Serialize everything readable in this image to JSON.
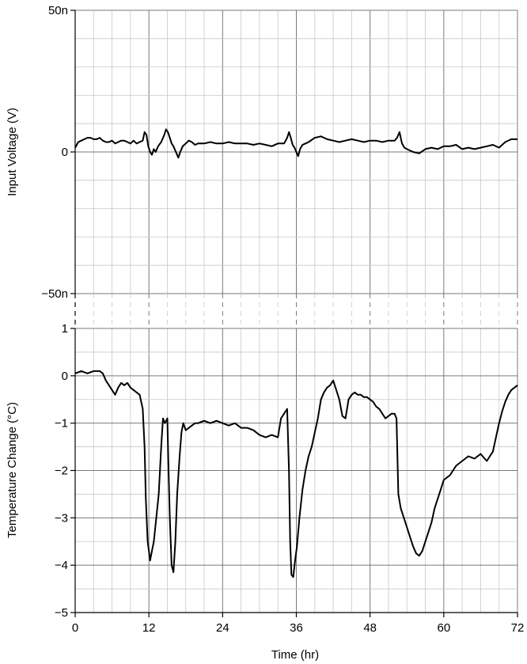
{
  "chart_data": [
    {
      "type": "line",
      "panel": "top",
      "ylabel": "Input Voltage (V)",
      "xlabel": "",
      "ylim": [
        -50,
        50
      ],
      "y_unit_suffix": "n",
      "yticks": [
        -50,
        0,
        50
      ],
      "ytick_labels": [
        "−50n",
        "0",
        "50n"
      ],
      "xlim": [
        0,
        72
      ],
      "grid": true,
      "series": [
        {
          "x": [
            0,
            0.5,
            1,
            1.5,
            2,
            2.5,
            3,
            3.5,
            4,
            4.5,
            5,
            5.5,
            6,
            6.5,
            7,
            7.5,
            8,
            8.5,
            9,
            9.5,
            10,
            10.5,
            11,
            11.3,
            11.6,
            11.9,
            12.2,
            12.5,
            12.8,
            13.1,
            13.5,
            14,
            14.5,
            14.8,
            15.1,
            15.4,
            15.7,
            16,
            16.4,
            16.8,
            17.1,
            17.5,
            18,
            18.5,
            19,
            19.5,
            20,
            21,
            22,
            23,
            24,
            25,
            26,
            27,
            28,
            29,
            30,
            31,
            32,
            33,
            34,
            34.5,
            34.8,
            35.1,
            35.4,
            35.7,
            36,
            36.3,
            36.6,
            37,
            37.5,
            38,
            39,
            40,
            41,
            42,
            43,
            44,
            45,
            46,
            47,
            48,
            49,
            50,
            51,
            52,
            52.4,
            52.8,
            53.2,
            53.6,
            54,
            55,
            56,
            57,
            58,
            59,
            60,
            61,
            62,
            63,
            64,
            65,
            66,
            67,
            68,
            69,
            70,
            71,
            72
          ],
          "y": [
            1.5,
            3.5,
            4,
            4.5,
            5,
            5,
            4.5,
            4.5,
            5,
            4,
            3.5,
            3.5,
            4,
            3,
            3.5,
            4,
            4,
            3.5,
            3,
            4,
            3,
            3.5,
            4,
            7,
            6,
            2,
            0,
            -1,
            1,
            0,
            2,
            3.5,
            6,
            8,
            7,
            5,
            3,
            2,
            0,
            -2,
            0,
            2,
            3,
            4,
            3.5,
            2.5,
            3,
            3,
            3.5,
            3,
            3,
            3.5,
            3,
            3,
            3,
            2.5,
            3,
            2.5,
            2,
            3,
            3,
            5,
            7,
            5,
            2.5,
            1.5,
            0,
            -1.5,
            1,
            2.5,
            3,
            3.5,
            5,
            5.5,
            4.5,
            4,
            3.5,
            4,
            4.5,
            4,
            3.5,
            4,
            4,
            3.5,
            4,
            4,
            5,
            7,
            3,
            1.5,
            1,
            0,
            -0.5,
            1,
            1.5,
            1,
            2,
            2,
            2.5,
            1,
            1.5,
            1,
            1.5,
            2,
            2.5,
            1.5,
            3.5,
            4.5,
            4.5
          ]
        }
      ]
    },
    {
      "type": "line",
      "panel": "bottom",
      "ylabel": "Temperature Change (°C)",
      "xlabel": "Time (hr)",
      "ylim": [
        -5,
        1
      ],
      "yticks": [
        -5,
        -4,
        -3,
        -2,
        -1,
        0,
        1
      ],
      "ytick_labels": [
        "−5",
        "−4",
        "−3",
        "−2",
        "−1",
        "0",
        "1"
      ],
      "xlim": [
        0,
        72
      ],
      "xticks": [
        0,
        12,
        24,
        36,
        48,
        60,
        72
      ],
      "xtick_labels": [
        "0",
        "12",
        "24",
        "36",
        "48",
        "60",
        "72"
      ],
      "grid": true,
      "series": [
        {
          "x": [
            0,
            1,
            2,
            3,
            4,
            4.5,
            5,
            5.5,
            6,
            6.5,
            7,
            7.5,
            8,
            8.5,
            9,
            9.5,
            10,
            10.5,
            11,
            11.3,
            11.5,
            11.8,
            12,
            12.2,
            12.5,
            12.8,
            13.2,
            13.6,
            14,
            14.3,
            14.6,
            15,
            15.2,
            15.4,
            15.7,
            16,
            16.3,
            16.6,
            17,
            17.3,
            17.6,
            18,
            18.5,
            19,
            19.5,
            20,
            21,
            22,
            23,
            24,
            25,
            26,
            27,
            28,
            29,
            30,
            31,
            32,
            33,
            33.5,
            34,
            34.5,
            34.8,
            35,
            35.2,
            35.5,
            35.8,
            36.1,
            36.5,
            37,
            37.5,
            38,
            38.5,
            39,
            39.5,
            40,
            40.5,
            41,
            41.5,
            42,
            42.5,
            43,
            43.5,
            44,
            44.5,
            45,
            45.5,
            46,
            46.5,
            47,
            47.5,
            48,
            48.5,
            49,
            49.5,
            50,
            50.5,
            51,
            51.5,
            52,
            52.3,
            52.6,
            53,
            53.5,
            54,
            54.5,
            55,
            55.5,
            56,
            56.5,
            57,
            57.5,
            58,
            58.5,
            59,
            59.5,
            60,
            61,
            62,
            63,
            64,
            65,
            66,
            67,
            68,
            68.5,
            69,
            69.5,
            70,
            70.5,
            71,
            71.5,
            72
          ],
          "y": [
            0.05,
            0.1,
            0.05,
            0.1,
            0.1,
            0.05,
            -0.1,
            -0.2,
            -0.3,
            -0.4,
            -0.25,
            -0.15,
            -0.2,
            -0.15,
            -0.25,
            -0.3,
            -0.35,
            -0.4,
            -0.7,
            -1.5,
            -2.6,
            -3.5,
            -3.7,
            -3.9,
            -3.7,
            -3.5,
            -3.0,
            -2.5,
            -1.5,
            -0.9,
            -1.0,
            -0.9,
            -2.0,
            -3.0,
            -4.0,
            -4.15,
            -3.5,
            -2.5,
            -1.7,
            -1.2,
            -1.0,
            -1.15,
            -1.1,
            -1.05,
            -1.0,
            -1.0,
            -0.95,
            -1.0,
            -0.95,
            -1.0,
            -1.05,
            -1.0,
            -1.1,
            -1.1,
            -1.15,
            -1.25,
            -1.3,
            -1.25,
            -1.3,
            -0.9,
            -0.8,
            -0.7,
            -2.0,
            -3.5,
            -4.2,
            -4.25,
            -3.9,
            -3.6,
            -3.0,
            -2.4,
            -2.0,
            -1.7,
            -1.5,
            -1.2,
            -0.9,
            -0.5,
            -0.35,
            -0.25,
            -0.2,
            -0.1,
            -0.3,
            -0.5,
            -0.85,
            -0.9,
            -0.5,
            -0.4,
            -0.35,
            -0.4,
            -0.4,
            -0.45,
            -0.45,
            -0.5,
            -0.55,
            -0.65,
            -0.7,
            -0.8,
            -0.9,
            -0.85,
            -0.8,
            -0.8,
            -0.9,
            -2.5,
            -2.8,
            -3.0,
            -3.2,
            -3.4,
            -3.6,
            -3.75,
            -3.8,
            -3.7,
            -3.5,
            -3.3,
            -3.1,
            -2.8,
            -2.6,
            -2.4,
            -2.2,
            -2.1,
            -1.9,
            -1.8,
            -1.7,
            -1.75,
            -1.65,
            -1.8,
            -1.6,
            -1.3,
            -1.0,
            -0.75,
            -0.55,
            -0.4,
            -0.3,
            -0.25,
            -0.2
          ]
        }
      ]
    }
  ]
}
